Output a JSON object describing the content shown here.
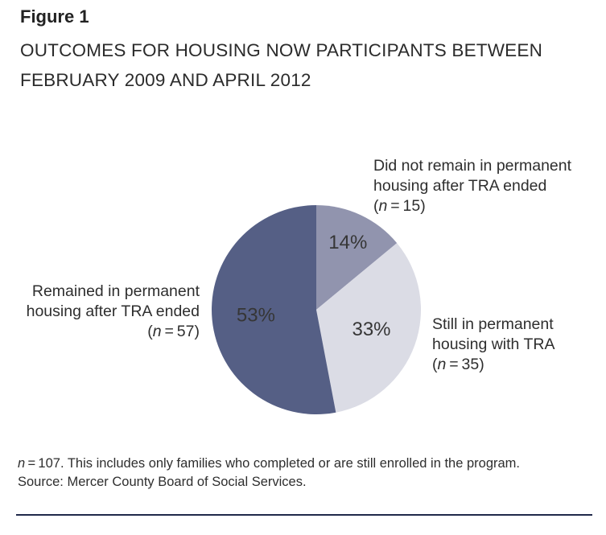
{
  "header": {
    "figure_label": "Figure 1",
    "title_lines": [
      "OUTCOMES FOR HOUSING NOW PARTICIPANTS BETWEEN",
      "FEBRUARY 2009 AND APRIL 2012"
    ]
  },
  "chart_data": {
    "type": "pie",
    "title": "Outcomes for Housing Now participants between February 2009 and April 2012",
    "start_angle_deg": 0,
    "direction": "clockwise",
    "total": {
      "n": 107
    },
    "slices": [
      {
        "name": "Did not remain in permanent housing after TRA ended",
        "label_lines": [
          "Did not remain in permanent",
          "housing after TRA ended"
        ],
        "n_label": "(n=15)",
        "n": 15,
        "pct": 14,
        "pct_label": "14%",
        "color": "#9194ae",
        "label_radius_frac": 0.71
      },
      {
        "name": "Still in permanent housing with TRA",
        "label_lines": [
          "Still in permanent",
          "housing with TRA"
        ],
        "n_label": "(n=35)",
        "n": 35,
        "pct": 33,
        "pct_label": "33%",
        "color": "#dbdce5",
        "label_radius_frac": 0.56
      },
      {
        "name": "Remained in permanent housing after TRA ended",
        "label_lines": [
          "Remained in permanent",
          "housing after TRA ended"
        ],
        "n_label": "(n=57)",
        "n": 57,
        "pct": 53,
        "pct_label": "53%",
        "color": "#555f85",
        "label_radius_frac": 0.58
      }
    ]
  },
  "notes": {
    "line1": "n=107. This includes only families who completed or are still enrolled in the program.",
    "line2": "Source: Mercer County Board of Social Services."
  }
}
